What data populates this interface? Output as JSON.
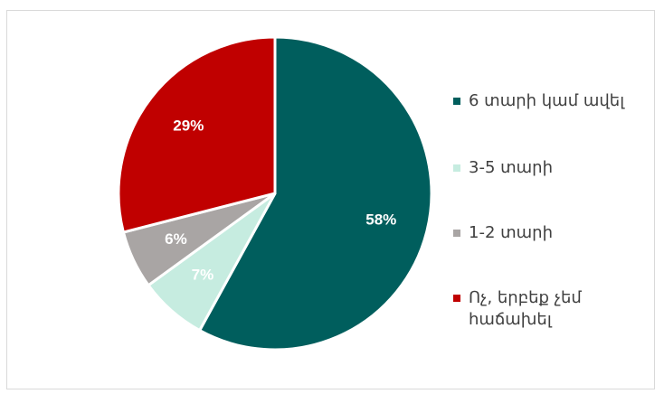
{
  "chart_data": {
    "type": "pie",
    "slices": [
      {
        "label": "6 տարի կամ ավել",
        "value": 58,
        "value_label": "58%",
        "color": "#005e5d"
      },
      {
        "label": "3-5 տարի",
        "value": 7,
        "value_label": "7%",
        "color": "#c6ece0"
      },
      {
        "label": "1-2 տարի",
        "value": 6,
        "value_label": "6%",
        "color": "#a9a5a4"
      },
      {
        "label": "Ոչ, երբեք չեմ հաճախել",
        "value": 29,
        "value_label": "29%",
        "color": "#c00000"
      }
    ],
    "start_angle_deg": 0,
    "direction": "clockwise",
    "legend_position": "right"
  }
}
